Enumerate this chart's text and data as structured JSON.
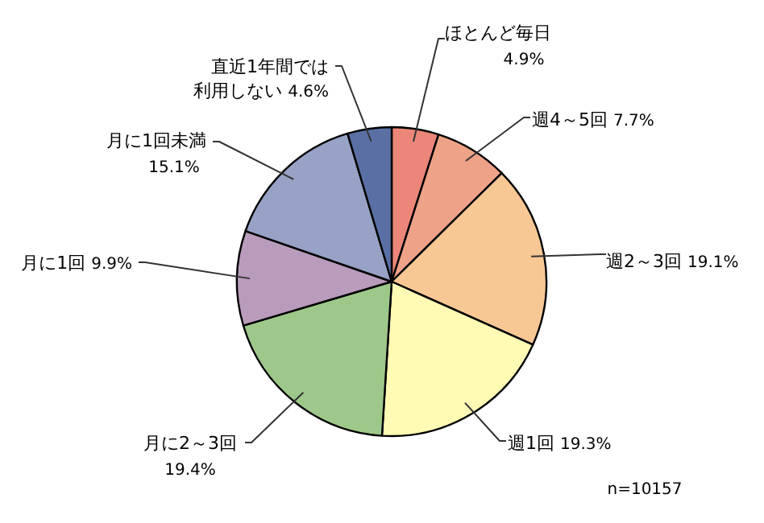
{
  "chart_data": {
    "type": "pie",
    "categories": [
      "ほとんど毎日",
      "週4～5回",
      "週2～3回",
      "週1回",
      "月に2～3回",
      "月に1回",
      "月に1回未満",
      "直近1年間では利用しない"
    ],
    "values": [
      4.9,
      7.7,
      19.1,
      19.3,
      19.4,
      9.9,
      15.1,
      4.6
    ],
    "value_labels": [
      "4.9%",
      "7.7%",
      "19.1%",
      "19.3%",
      "19.4%",
      "9.9%",
      "15.1%",
      "4.6%"
    ],
    "colors": [
      "#ec8678",
      "#eea288",
      "#f8c894",
      "#fffab4",
      "#9ec889",
      "#b99cbb",
      "#98a2c6",
      "#5a70a4"
    ],
    "annotations": [
      "n=10157"
    ],
    "legend": false
  }
}
